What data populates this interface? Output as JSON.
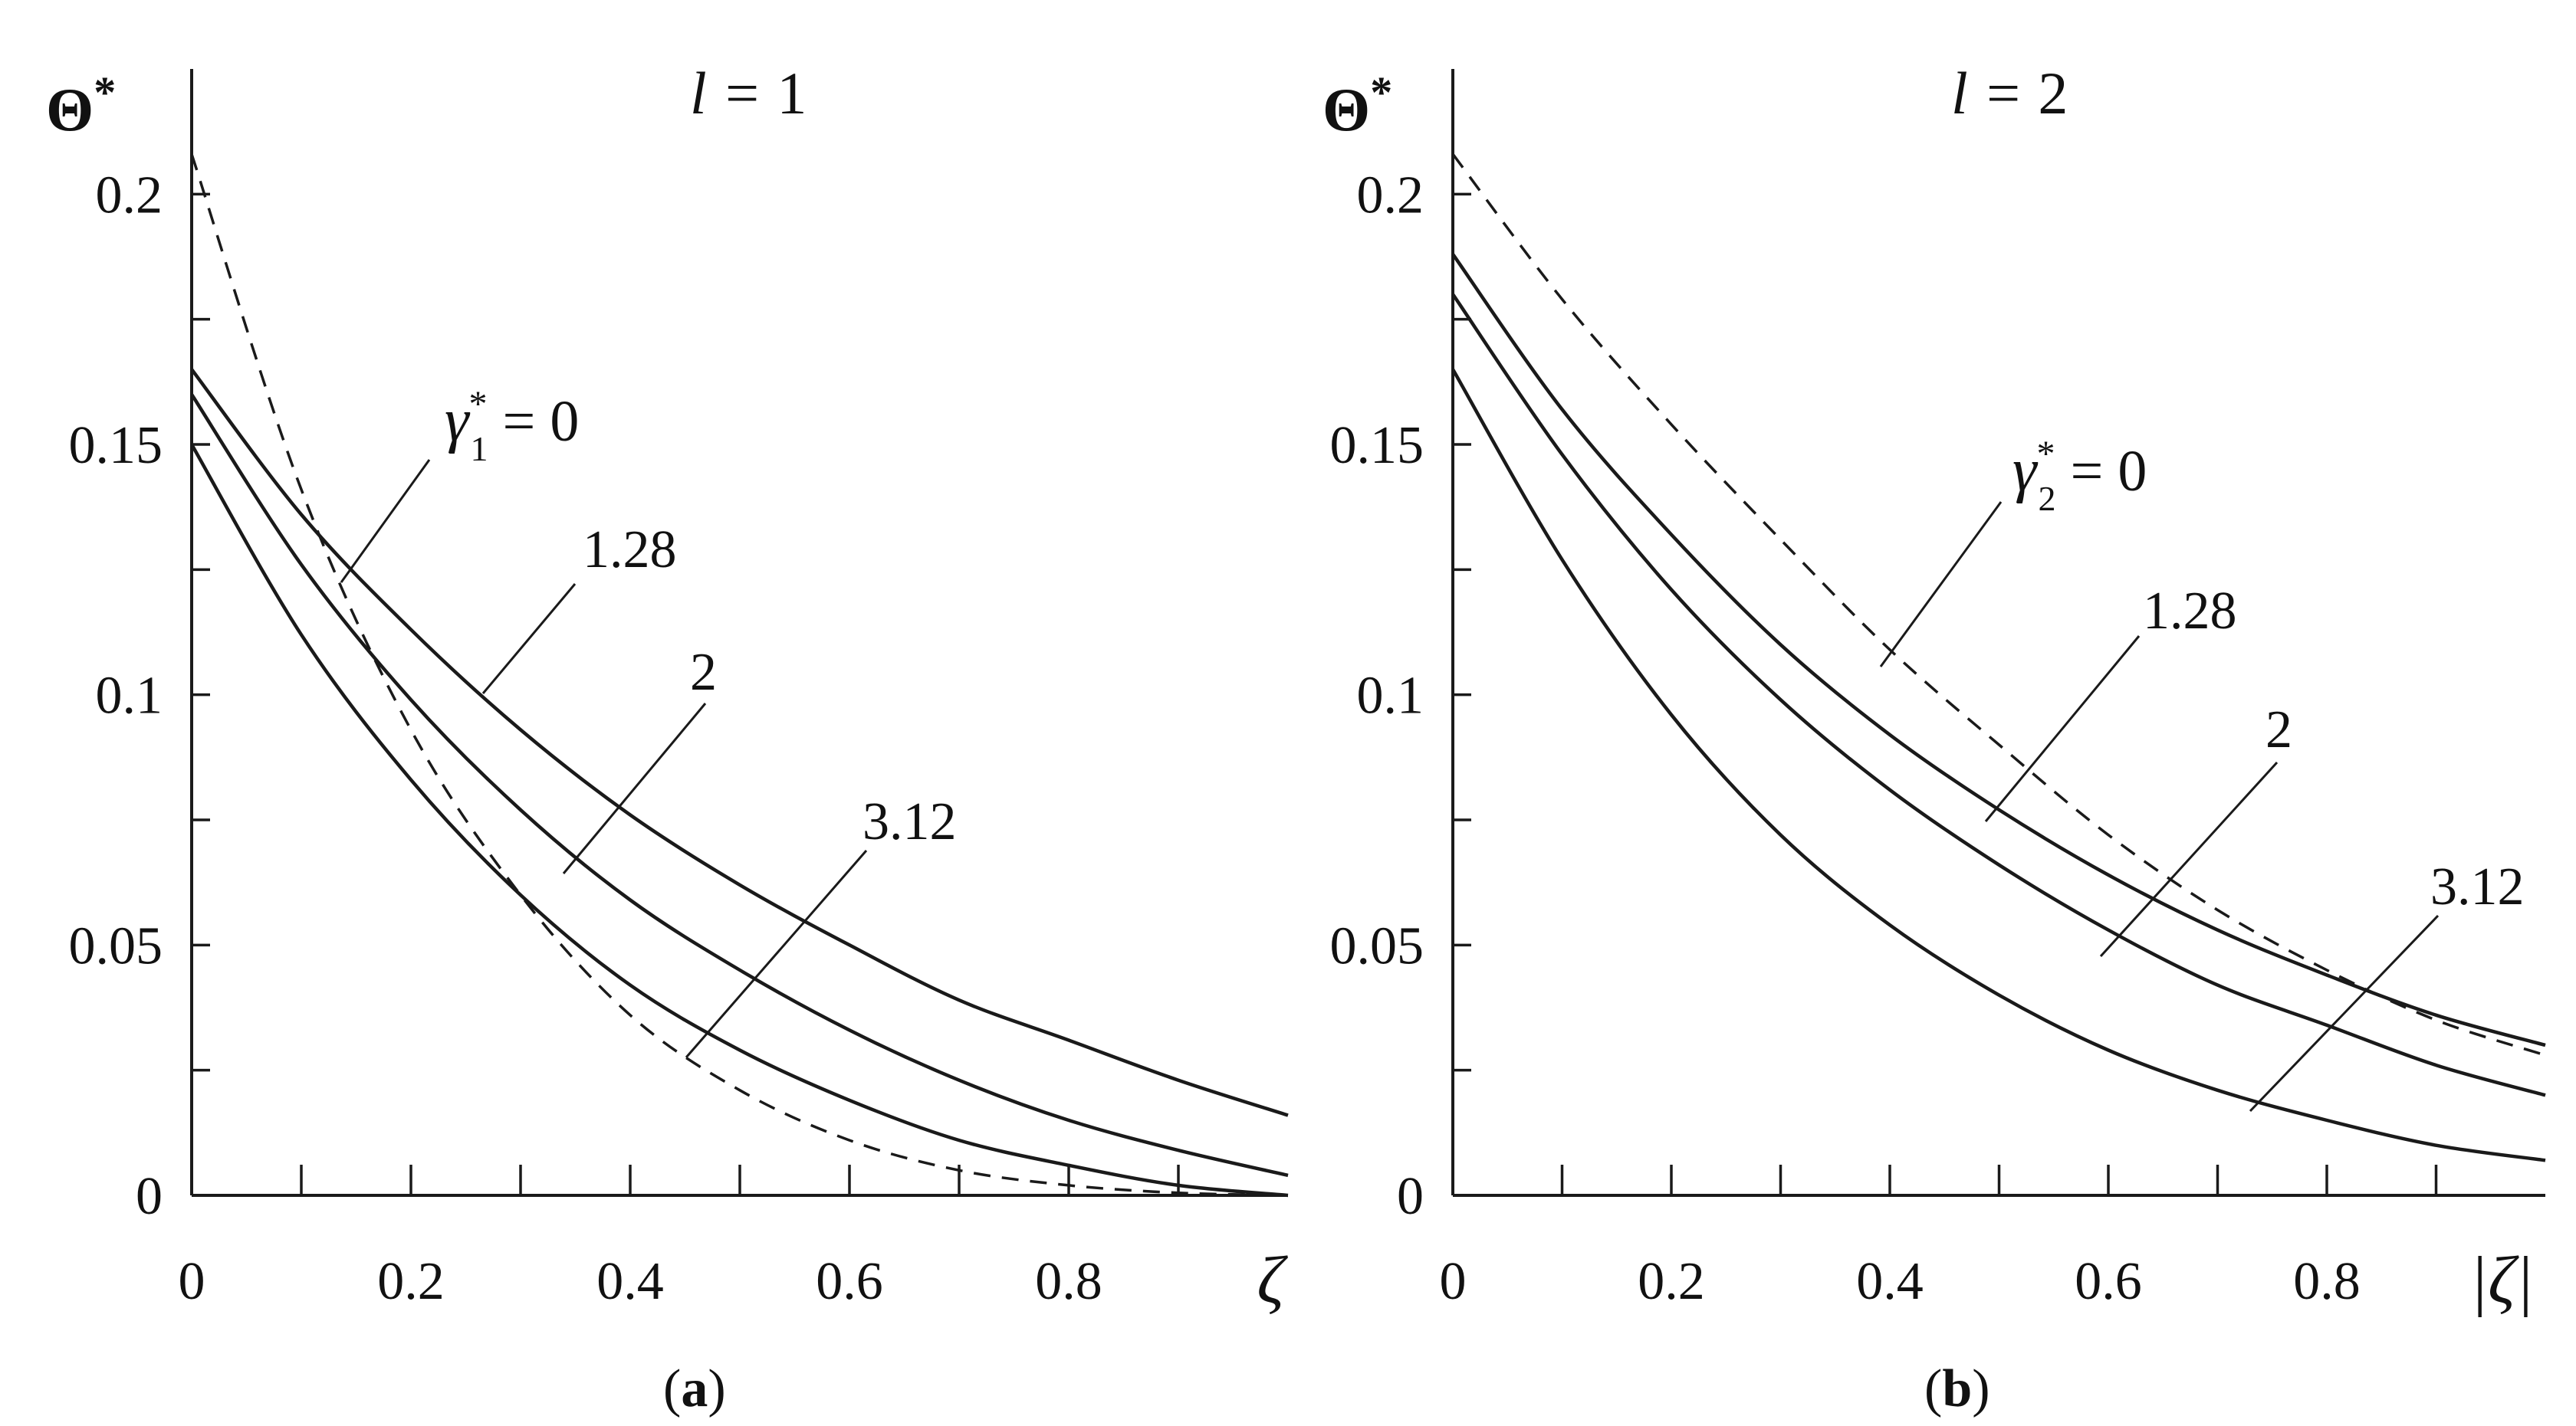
{
  "chart_data": [
    {
      "type": "line",
      "panel": "(a)",
      "panel_letter": "a",
      "title": "l = 1",
      "title_var": "l",
      "title_value": "1",
      "xlabel": "ζ",
      "ylabel": "Θ*",
      "xlim": [
        0,
        1
      ],
      "ylim": [
        0,
        0.225
      ],
      "xticks": [
        "0",
        "0.2",
        "0.4",
        "0.6",
        "0.8"
      ],
      "yticks": [
        "0",
        "0.05",
        "0.1",
        "0.15",
        "0.2"
      ],
      "label_prefix": "γ",
      "label_sub": "1",
      "x": [
        0,
        0.1,
        0.2,
        0.3,
        0.4,
        0.5,
        0.6,
        0.7,
        0.8,
        0.9,
        1.0
      ],
      "series": [
        {
          "name": "0",
          "label": "= 0",
          "style": "dashed",
          "values": [
            0.208,
            0.141,
            0.093,
            0.06,
            0.036,
            0.021,
            0.011,
            0.005,
            0.002,
            0.0005,
            0.0
          ]
        },
        {
          "name": "1.28",
          "label": "1.28",
          "style": "solid",
          "values": [
            0.165,
            0.136,
            0.113,
            0.093,
            0.076,
            0.062,
            0.05,
            0.039,
            0.031,
            0.023,
            0.016
          ]
        },
        {
          "name": "2",
          "label": "2",
          "style": "solid",
          "values": [
            0.16,
            0.126,
            0.099,
            0.077,
            0.059,
            0.045,
            0.033,
            0.023,
            0.015,
            0.009,
            0.004
          ]
        },
        {
          "name": "3.12",
          "label": "3.12",
          "style": "solid",
          "values": [
            0.15,
            0.112,
            0.083,
            0.06,
            0.042,
            0.029,
            0.019,
            0.011,
            0.006,
            0.002,
            0.0
          ]
        }
      ]
    },
    {
      "type": "line",
      "panel": "(b)",
      "panel_letter": "b",
      "title": "l = 2",
      "title_var": "l",
      "title_value": "2",
      "xlabel": "|ζ|",
      "ylabel": "Θ*",
      "xlim": [
        0,
        1
      ],
      "ylim": [
        0,
        0.225
      ],
      "xticks": [
        "0",
        "0.2",
        "0.4",
        "0.6",
        "0.8"
      ],
      "yticks": [
        "0",
        "0.05",
        "0.1",
        "0.15",
        "0.2"
      ],
      "label_prefix": "γ",
      "label_sub": "2",
      "x": [
        0,
        0.1,
        0.2,
        0.3,
        0.4,
        0.5,
        0.6,
        0.7,
        0.8,
        0.9,
        1.0
      ],
      "series": [
        {
          "name": "0",
          "label": "= 0",
          "style": "dashed",
          "values": [
            0.208,
            0.179,
            0.154,
            0.131,
            0.109,
            0.09,
            0.072,
            0.057,
            0.045,
            0.035,
            0.028
          ]
        },
        {
          "name": "1.28",
          "label": "1.28",
          "style": "solid",
          "values": [
            0.188,
            0.157,
            0.132,
            0.11,
            0.092,
            0.077,
            0.064,
            0.053,
            0.044,
            0.036,
            0.03
          ]
        },
        {
          "name": "2",
          "label": "2",
          "style": "solid",
          "values": [
            0.18,
            0.148,
            0.121,
            0.099,
            0.081,
            0.066,
            0.053,
            0.042,
            0.034,
            0.026,
            0.02
          ]
        },
        {
          "name": "3.12",
          "label": "3.12",
          "style": "solid",
          "values": [
            0.165,
            0.127,
            0.096,
            0.072,
            0.054,
            0.04,
            0.029,
            0.021,
            0.015,
            0.01,
            0.007
          ]
        }
      ]
    }
  ]
}
